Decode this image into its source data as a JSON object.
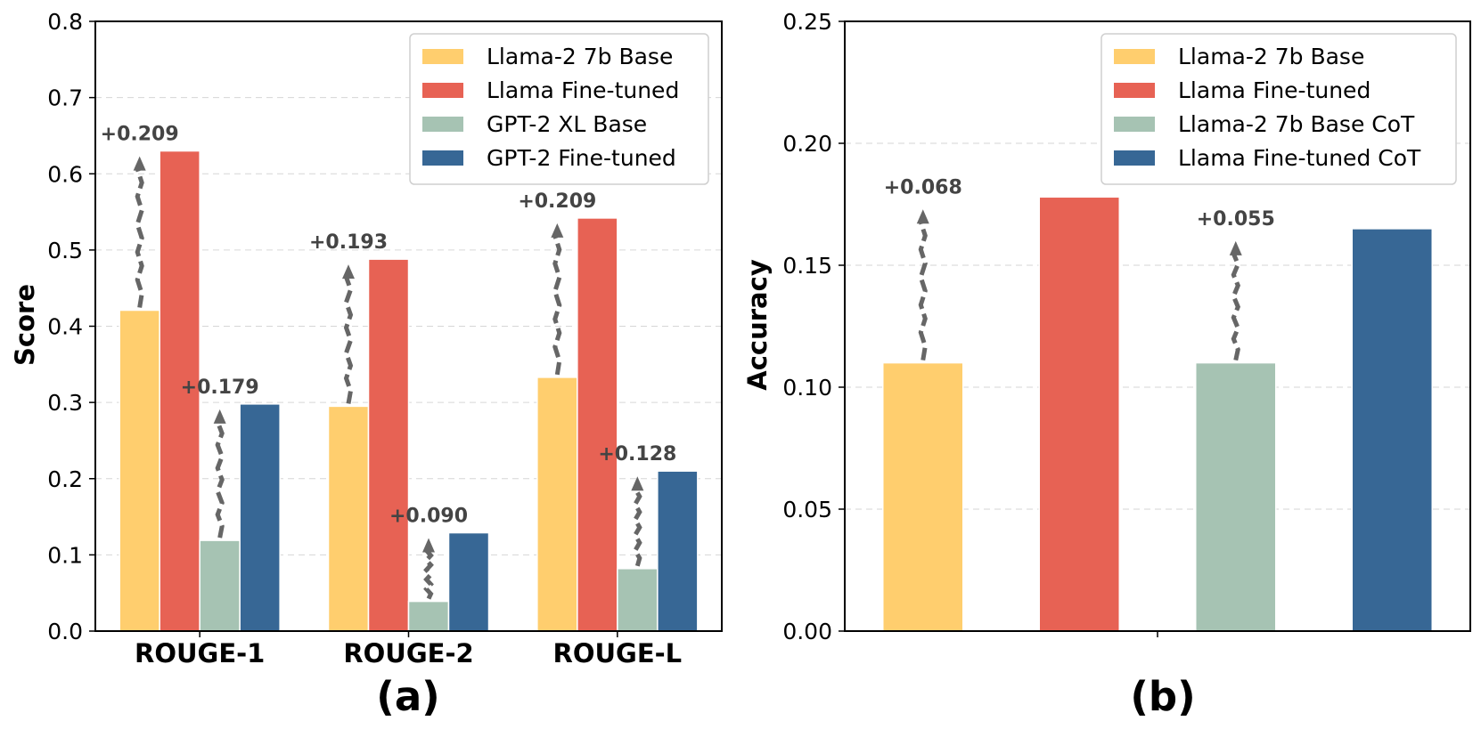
{
  "chart_data": [
    {
      "type": "bar",
      "panel_label": "(a)",
      "xlabel": "",
      "ylabel": "Score",
      "ylim": [
        0,
        0.8
      ],
      "yticks": [
        "0.0",
        "0.1",
        "0.2",
        "0.3",
        "0.4",
        "0.5",
        "0.6",
        "0.7",
        "0.8"
      ],
      "grid": true,
      "legend_position": "top-right",
      "categories": [
        "ROUGE-1",
        "ROUGE-2",
        "ROUGE-L"
      ],
      "series": [
        {
          "name": "Llama-2 7b Base",
          "color": "#FFCE6E",
          "values": [
            0.421,
            0.295,
            0.333
          ]
        },
        {
          "name": "Llama Fine-tuned",
          "color": "#E76254",
          "values": [
            0.63,
            0.488,
            0.542
          ]
        },
        {
          "name": "GPT-2 XL Base",
          "color": "#A6C3B3",
          "values": [
            0.119,
            0.039,
            0.082
          ]
        },
        {
          "name": "GPT-2 Fine-tuned",
          "color": "#376795",
          "values": [
            0.298,
            0.129,
            0.21
          ]
        }
      ],
      "annotations": [
        {
          "text": "+0.209",
          "category": 0,
          "from_series": 0,
          "to_series": 1
        },
        {
          "text": "+0.179",
          "category": 0,
          "from_series": 2,
          "to_series": 3
        },
        {
          "text": "+0.193",
          "category": 1,
          "from_series": 0,
          "to_series": 1
        },
        {
          "text": "+0.090",
          "category": 1,
          "from_series": 2,
          "to_series": 3
        },
        {
          "text": "+0.209",
          "category": 2,
          "from_series": 0,
          "to_series": 1
        },
        {
          "text": "+0.128",
          "category": 2,
          "from_series": 2,
          "to_series": 3
        }
      ]
    },
    {
      "type": "bar",
      "panel_label": "(b)",
      "xlabel": "",
      "ylabel": "Accuracy",
      "ylim": [
        0,
        0.25
      ],
      "yticks": [
        "0.00",
        "0.05",
        "0.10",
        "0.15",
        "0.20",
        "0.25"
      ],
      "grid": true,
      "legend_position": "top-right",
      "series": [
        {
          "name": "Llama-2 7b Base",
          "color": "#FFCE6E",
          "value": 0.11
        },
        {
          "name": "Llama Fine-tuned",
          "color": "#E76254",
          "value": 0.178
        },
        {
          "name": "Llama-2 7b Base CoT",
          "color": "#A6C3B3",
          "value": 0.11
        },
        {
          "name": "Llama Fine-tuned CoT",
          "color": "#376795",
          "value": 0.165
        }
      ],
      "annotations": [
        {
          "text": "+0.068",
          "from_series": 0,
          "to_series": 1
        },
        {
          "text": "+0.055",
          "from_series": 2,
          "to_series": 3
        }
      ]
    }
  ]
}
